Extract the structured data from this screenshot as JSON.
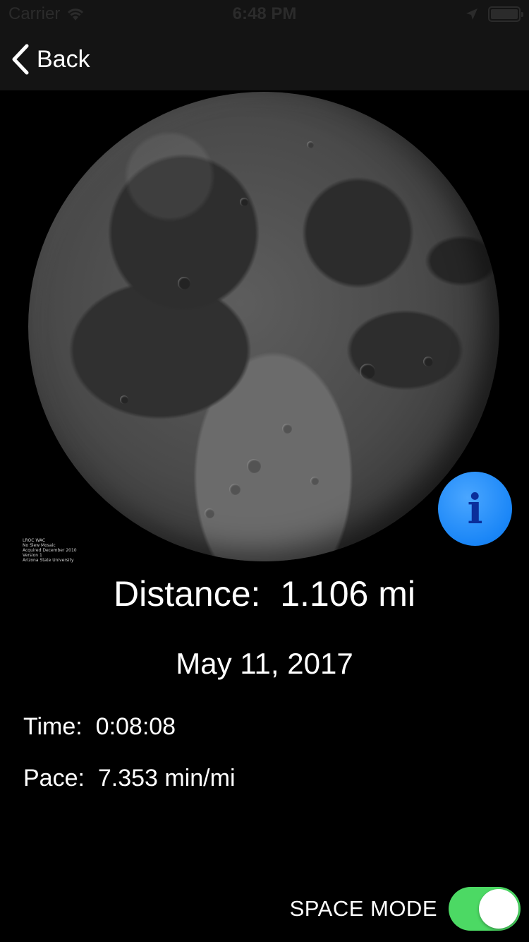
{
  "status_bar": {
    "carrier": "Carrier",
    "time": "6:48 PM"
  },
  "nav": {
    "back_label": "Back"
  },
  "moon": {
    "credit_lines": [
      "LROC WAC",
      "No Slew Mosaic",
      "Acquired December 2010",
      "Version 1",
      "Arizona State University"
    ]
  },
  "run": {
    "distance_label": "Distance:",
    "distance_value": "1.106 mi",
    "date": "May 11, 2017",
    "time_label": "Time:",
    "time_value": "0:08:08",
    "pace_label": "Pace:",
    "pace_value": "7.353 min/mi"
  },
  "space_mode": {
    "label": "SPACE MODE",
    "enabled": true
  },
  "colors": {
    "toggle_on": "#4cd964",
    "info_button": "#1a86f7",
    "nav_background": "#141414"
  }
}
